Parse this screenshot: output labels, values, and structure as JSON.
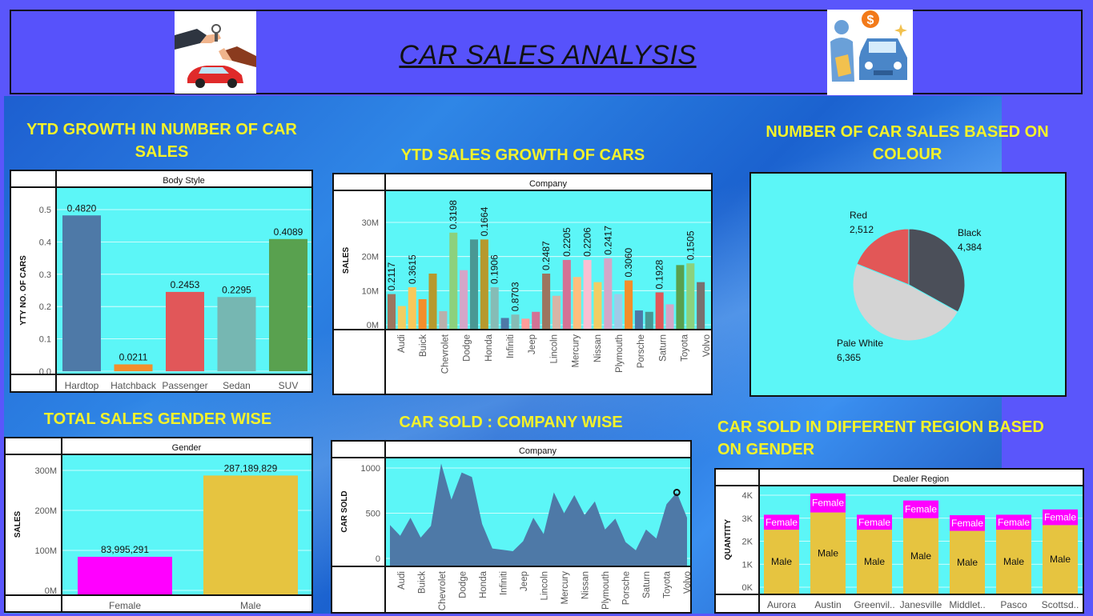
{
  "header": {
    "title": "CAR SALES ANALYSIS"
  },
  "titles": {
    "growth_count": "YTD GROWTH IN NUMBER OF CAR SALES",
    "sales_growth": "YTD SALES GROWTH OF CARS",
    "colour": "NUMBER OF CAR SALES BASED ON COLOUR",
    "gender": "TOTAL SALES GENDER WISE",
    "company": "CAR SOLD :  COMPANY WISE",
    "region": "CAR SOLD IN DIFFERENT REGION BASED ON GENDER"
  },
  "chart_data": [
    {
      "id": "body_style",
      "type": "bar",
      "header": "Body Style",
      "ylabel": "YTY NO. OF CARS",
      "xlabel": "",
      "categories": [
        "Hardtop",
        "Hatchback",
        "Passenger",
        "Sedan",
        "SUV"
      ],
      "values": [
        0.482,
        0.0211,
        0.2453,
        0.2295,
        0.4089
      ],
      "labels": [
        "0.4820",
        "0.0211",
        "0.2453",
        "0.2295",
        "0.4089"
      ],
      "colors": [
        "#4e79a7",
        "#f28e2b",
        "#e15759",
        "#76b7b2",
        "#59a14f"
      ],
      "yticks": [
        "0.0",
        "0.1",
        "0.2",
        "0.3",
        "0.4",
        "0.5"
      ],
      "ylim": [
        0,
        0.5
      ]
    },
    {
      "id": "company_sales",
      "type": "bar",
      "header": "Company",
      "ylabel": "SALES",
      "xlabel": "",
      "tick_labels": [
        "Audi",
        "Buick",
        "Chevrolet",
        "Dodge",
        "Honda",
        "Infiniti",
        "Jeep",
        "Lincoln",
        "Mercury",
        "Nissan",
        "Plymouth",
        "Porsche",
        "Saturn",
        "Toyota",
        "Volvo"
      ],
      "values": [
        9,
        5.5,
        11,
        7.5,
        15,
        4,
        27,
        16,
        25,
        25,
        11,
        2,
        3,
        1.8,
        3.8,
        15,
        8.5,
        19,
        14,
        19,
        12.5,
        19.5,
        9,
        13,
        4.2,
        3.8,
        9.5,
        6,
        17.5,
        18,
        12.5
      ],
      "labels": [
        "0.2117",
        "",
        "0.3615",
        "",
        "",
        "",
        "0.3198",
        "",
        "",
        "0.1664",
        "0.1906",
        "",
        "0.8703",
        "",
        "",
        "0.2487",
        "",
        "0.2205",
        "",
        "0.2206",
        "",
        "0.2417",
        "",
        "0.3060",
        "",
        "",
        "0.1928",
        "",
        "",
        "0.1505",
        ""
      ],
      "colors": [
        "#9c755f",
        "#f1ce63",
        "#f9c85b",
        "#f28e2b",
        "#b6992d",
        "#bab0ac",
        "#8cd17d",
        "#d4a6c8",
        "#499894",
        "#b6992d",
        "#86bcb6",
        "#4e79a7",
        "#86bcb6",
        "#ff9d9a",
        "#d37295",
        "#9c755f",
        "#d7b5a6",
        "#d37295",
        "#ffbe7d",
        "#fabfd2",
        "#f1ce63",
        "#d4a6c8",
        "#a0cbe8",
        "#f28e2b",
        "#4e79a7",
        "#499894",
        "#e15759",
        "#d4a6c8",
        "#59a14f",
        "#8cd17d",
        "#79706e"
      ],
      "yticks": [
        "0M",
        "10M",
        "20M",
        "30M"
      ],
      "ylim": [
        0,
        35
      ]
    },
    {
      "id": "colour",
      "type": "pie",
      "categories": [
        "Black",
        "Pale White",
        "Red"
      ],
      "values": [
        4384,
        6365,
        2512
      ],
      "labels": [
        "4,384",
        "6,365",
        "2,512"
      ],
      "colors": [
        "#4b4f59",
        "#d4d4d4",
        "#e25757"
      ]
    },
    {
      "id": "gender",
      "type": "bar",
      "header": "Gender",
      "ylabel": "SALES",
      "xlabel": "",
      "categories": [
        "Female",
        "Male"
      ],
      "values": [
        83995291,
        287189829
      ],
      "labels": [
        "83,995,291",
        "287,189,829"
      ],
      "colors": [
        "#ff00ff",
        "#e6c440"
      ],
      "yticks": [
        "0M",
        "100M",
        "200M",
        "300M"
      ],
      "ylim": [
        0,
        320000000
      ]
    },
    {
      "id": "company_sold",
      "type": "area",
      "header": "Company",
      "ylabel": "CAR SOLD",
      "xlabel": "",
      "tick_labels": [
        "Audi",
        "Buick",
        "Chevrolet",
        "Dodge",
        "Honda",
        "Infiniti",
        "Jeep",
        "Lincoln",
        "Mercury",
        "Nissan",
        "Plymouth",
        "Porsche",
        "Saturn",
        "Toyota",
        "Volvo"
      ],
      "values": [
        370,
        250,
        450,
        230,
        360,
        1050,
        650,
        950,
        900,
        380,
        110,
        95,
        80,
        190,
        450,
        270,
        730,
        500,
        700,
        480,
        630,
        320,
        440,
        180,
        90,
        320,
        220,
        600,
        730,
        450
      ],
      "yticks": [
        "0",
        "500",
        "1000"
      ],
      "ylim": [
        0,
        1100
      ],
      "color": "#4e79a7"
    },
    {
      "id": "region",
      "type": "bar",
      "header": "Dealer Region",
      "ylabel": "QUANTITY",
      "xlabel": "",
      "categories": [
        "Aurora",
        "Austin",
        "Greenvil..",
        "Janesville",
        "Middlet..",
        "Pasco",
        "Scottsd.."
      ],
      "series": [
        {
          "name": "Male",
          "values": [
            2500,
            3250,
            2500,
            3000,
            2450,
            2500,
            2700
          ],
          "color": "#e6c440"
        },
        {
          "name": "Female",
          "values": [
            650,
            830,
            650,
            770,
            680,
            650,
            680
          ],
          "color": "#ff00ff"
        }
      ],
      "yticks": [
        "0K",
        "1K",
        "2K",
        "3K",
        "4K"
      ],
      "ylim": [
        0,
        4200
      ]
    }
  ]
}
